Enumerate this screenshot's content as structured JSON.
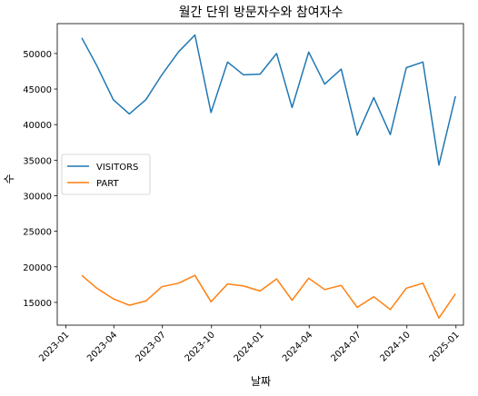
{
  "chart_data": {
    "type": "line",
    "title": "월간 단위 방문자수와 참여자수",
    "xlabel": "날짜",
    "ylabel": "수",
    "x_ticks": [
      "2023-01",
      "2023-04",
      "2023-07",
      "2023-10",
      "2024-01",
      "2024-04",
      "2024-07",
      "2024-10",
      "2025-01"
    ],
    "y_ticks": [
      15000,
      20000,
      25000,
      30000,
      35000,
      40000,
      45000,
      50000
    ],
    "ylim": [
      11800,
      54200
    ],
    "xlim": [
      "2022-12-16",
      "2025-01-15"
    ],
    "x": [
      "2023-01-31",
      "2023-02-28",
      "2023-03-31",
      "2023-04-30",
      "2023-05-31",
      "2023-06-30",
      "2023-07-31",
      "2023-08-31",
      "2023-09-30",
      "2023-10-31",
      "2023-11-30",
      "2023-12-31",
      "2024-01-31",
      "2024-02-29",
      "2024-03-31",
      "2024-04-30",
      "2024-05-31",
      "2024-06-30",
      "2024-07-31",
      "2024-08-31",
      "2024-09-30",
      "2024-10-31",
      "2024-11-30",
      "2024-12-31"
    ],
    "series": [
      {
        "name": "VISITORS",
        "color": "#1f77b4",
        "values": [
          52200,
          48300,
          43500,
          41500,
          43500,
          47000,
          50200,
          52600,
          41700,
          48800,
          47000,
          47100,
          50000,
          42400,
          50200,
          45700,
          47800,
          38500,
          43800,
          38600,
          48000,
          48800,
          34300,
          44000
        ]
      },
      {
        "name": "PART",
        "color": "#ff7f0e",
        "values": [
          18800,
          17000,
          15500,
          14600,
          15200,
          17200,
          17700,
          18800,
          15100,
          17600,
          17300,
          16600,
          18300,
          15300,
          18400,
          16800,
          17400,
          14300,
          15800,
          14000,
          17000,
          17700,
          12800,
          16200
        ]
      }
    ],
    "legend_position": "center-left",
    "grid": false
  }
}
